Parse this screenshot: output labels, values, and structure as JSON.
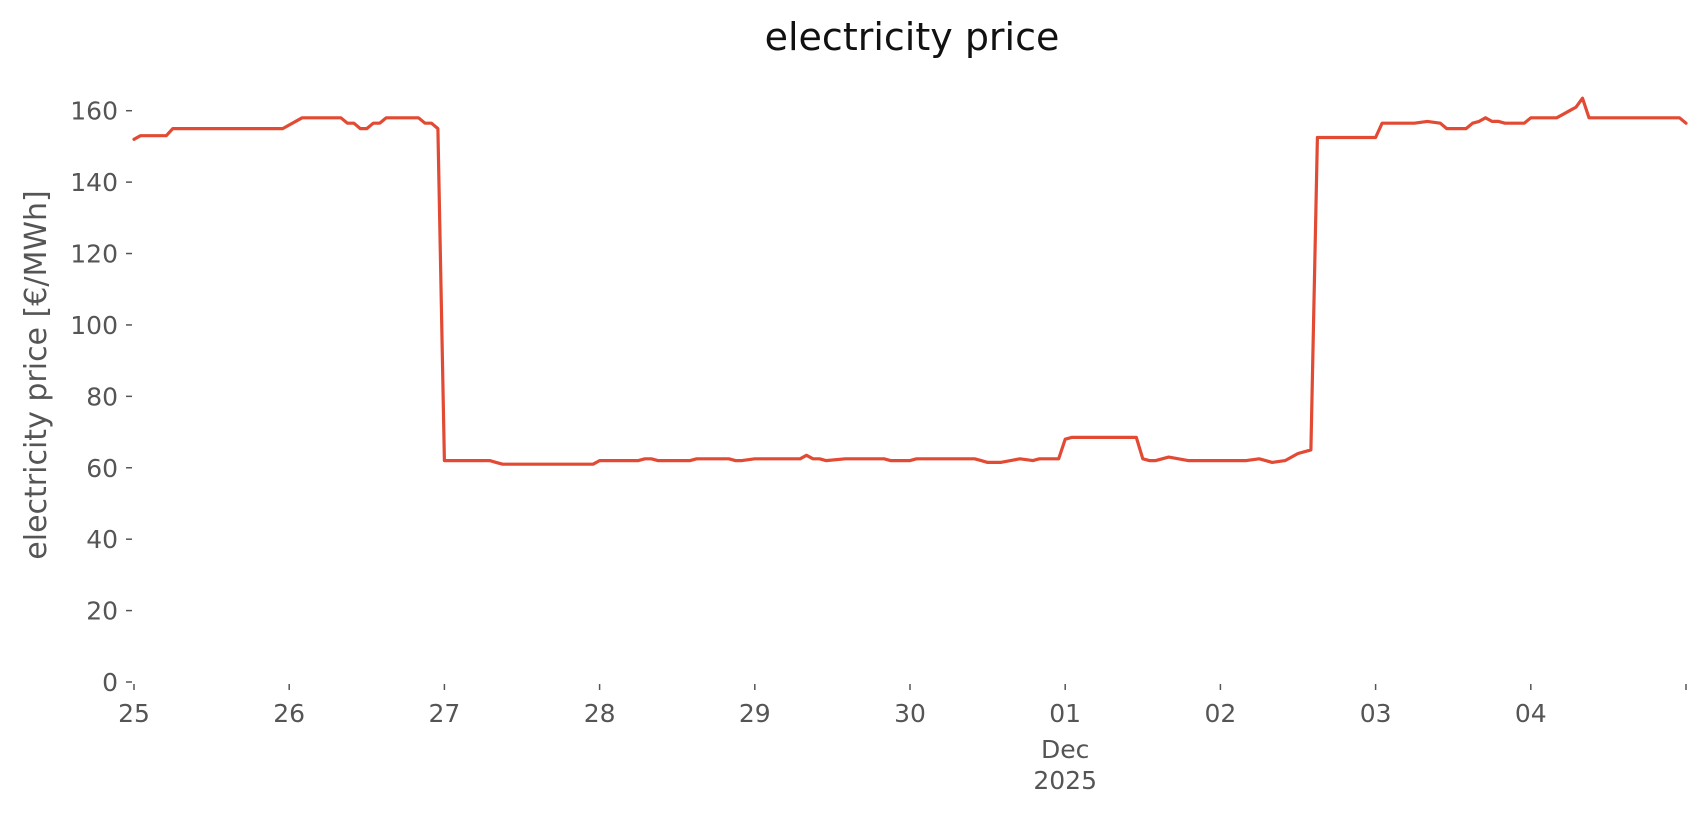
{
  "chart_data": {
    "type": "line",
    "title": "electricity price",
    "xlabel": "",
    "ylabel": "electricity price [€/MWh]",
    "ylim": [
      0,
      170
    ],
    "yticks": [
      0,
      20,
      40,
      60,
      80,
      100,
      120,
      140,
      160
    ],
    "xlim": [
      "2025-11-25T00:00",
      "2025-12-05T00:00"
    ],
    "xticks": [
      {
        "date": "2025-11-25T00:00",
        "label": "25"
      },
      {
        "date": "2025-11-26T00:00",
        "label": "26"
      },
      {
        "date": "2025-11-27T00:00",
        "label": "27"
      },
      {
        "date": "2025-11-28T00:00",
        "label": "28"
      },
      {
        "date": "2025-11-29T00:00",
        "label": "29"
      },
      {
        "date": "2025-11-30T00:00",
        "label": "30"
      },
      {
        "date": "2025-12-01T00:00",
        "label": "01"
      },
      {
        "date": "2025-12-02T00:00",
        "label": "02"
      },
      {
        "date": "2025-12-03T00:00",
        "label": "03"
      },
      {
        "date": "2025-12-04T00:00",
        "label": "04"
      },
      {
        "date": "2025-12-05T00:00",
        "label": ""
      }
    ],
    "x_sublabel": {
      "date": "2025-12-01T00:00",
      "month": "Dec",
      "year": "2025"
    },
    "grid": false,
    "color": "#e24a33",
    "series": [
      {
        "x": [
          "2025-11-25T00:00",
          "2025-11-25T01:00",
          "2025-11-25T05:00",
          "2025-11-25T06:00",
          "2025-11-25T12:00",
          "2025-11-25T23:00",
          "2025-11-26T02:00",
          "2025-11-26T08:00",
          "2025-11-26T09:00",
          "2025-11-26T10:00",
          "2025-11-26T11:00",
          "2025-11-26T12:00",
          "2025-11-26T13:00",
          "2025-11-26T14:00",
          "2025-11-26T15:00",
          "2025-11-26T20:00",
          "2025-11-26T21:00",
          "2025-11-26T22:00",
          "2025-11-26T23:00",
          "2025-11-27T00:00",
          "2025-11-27T07:00",
          "2025-11-27T08:00",
          "2025-11-27T09:00",
          "2025-11-27T23:00",
          "2025-11-28T00:00",
          "2025-11-28T06:00",
          "2025-11-28T07:00",
          "2025-11-28T08:00",
          "2025-11-28T09:00",
          "2025-11-28T14:00",
          "2025-11-28T15:00",
          "2025-11-28T20:00",
          "2025-11-28T21:00",
          "2025-11-28T22:00",
          "2025-11-29T00:00",
          "2025-11-29T07:00",
          "2025-11-29T08:00",
          "2025-11-29T09:00",
          "2025-11-29T10:00",
          "2025-11-29T11:00",
          "2025-11-29T14:00",
          "2025-11-29T20:00",
          "2025-11-29T21:00",
          "2025-11-30T00:00",
          "2025-11-30T01:00",
          "2025-11-30T10:00",
          "2025-11-30T11:00",
          "2025-11-30T12:00",
          "2025-11-30T14:00",
          "2025-11-30T17:00",
          "2025-11-30T19:00",
          "2025-11-30T20:00",
          "2025-11-30T23:00",
          "2025-12-01T00:00",
          "2025-12-01T01:00",
          "2025-12-01T02:00",
          "2025-12-01T11:00",
          "2025-12-01T12:00",
          "2025-12-01T13:00",
          "2025-12-01T14:00",
          "2025-12-01T15:00",
          "2025-12-01T16:00",
          "2025-12-01T19:00",
          "2025-12-02T04:00",
          "2025-12-02T06:00",
          "2025-12-02T08:00",
          "2025-12-02T10:00",
          "2025-12-02T12:00",
          "2025-12-02T14:00",
          "2025-12-02T15:00",
          "2025-12-02T16:00",
          "2025-12-02T17:00",
          "2025-12-03T00:00",
          "2025-12-03T01:00",
          "2025-12-03T02:00",
          "2025-12-03T06:00",
          "2025-12-03T08:00",
          "2025-12-03T10:00",
          "2025-12-03T11:00",
          "2025-12-03T12:00",
          "2025-12-03T14:00",
          "2025-12-03T15:00",
          "2025-12-03T16:00",
          "2025-12-03T17:00",
          "2025-12-03T18:00",
          "2025-12-03T19:00",
          "2025-12-03T20:00",
          "2025-12-03T21:00",
          "2025-12-03T23:00",
          "2025-12-04T00:00",
          "2025-12-04T01:00",
          "2025-12-04T04:00",
          "2025-12-04T05:00",
          "2025-12-04T06:00",
          "2025-12-04T07:00",
          "2025-12-04T08:00",
          "2025-12-04T09:00",
          "2025-12-04T10:00",
          "2025-12-04T23:00",
          "2025-12-05T00:00"
        ],
        "y": [
          152,
          153,
          153,
          155,
          155,
          155,
          158,
          158,
          156.5,
          156.5,
          155,
          155,
          156.5,
          156.5,
          158,
          158,
          156.5,
          156.5,
          155,
          62,
          62,
          61.5,
          61,
          61,
          62,
          62,
          62.5,
          62.5,
          62,
          62,
          62.5,
          62.5,
          62,
          62,
          62.5,
          62.5,
          63.5,
          62.5,
          62.5,
          62,
          62.5,
          62.5,
          62,
          62,
          62.5,
          62.5,
          62,
          61.5,
          61.5,
          62.5,
          62,
          62.5,
          62.5,
          68,
          68.5,
          68.5,
          68.5,
          62.5,
          62,
          62,
          62.5,
          63,
          62,
          62,
          62.5,
          61.5,
          62,
          64,
          65,
          152.5,
          152.5,
          152.5,
          152.5,
          156.5,
          156.5,
          156.5,
          157,
          156.5,
          155,
          155,
          155,
          156.5,
          157,
          158,
          157,
          157,
          156.5,
          156.5,
          156.5,
          158,
          158,
          158,
          159,
          160,
          161,
          163.5,
          158,
          158,
          158,
          156.5
        ]
      }
    ]
  }
}
